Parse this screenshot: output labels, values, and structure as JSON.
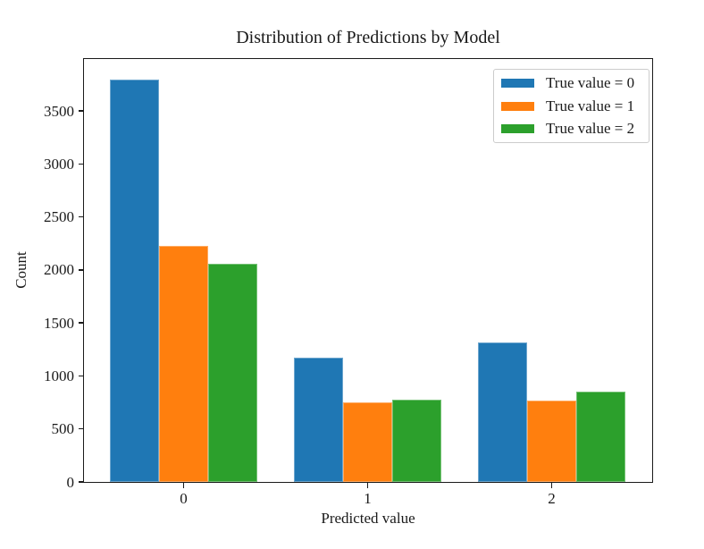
{
  "chart_data": {
    "type": "bar",
    "title": "Distribution of Predictions by Model",
    "xlabel": "Predicted value",
    "ylabel": "Count",
    "categories": [
      "0",
      "1",
      "2"
    ],
    "series": [
      {
        "name": "True value = 0",
        "color": "#1f77b4",
        "values": [
          3800,
          1170,
          1320
        ]
      },
      {
        "name": "True value = 1",
        "color": "#ff7f0e",
        "values": [
          2230,
          750,
          770
        ]
      },
      {
        "name": "True value = 2",
        "color": "#2ca02c",
        "values": [
          2060,
          780,
          855
        ]
      }
    ],
    "yticks": [
      0,
      500,
      1000,
      1500,
      2000,
      2500,
      3000,
      3500
    ],
    "ylim": [
      0,
      3990
    ],
    "grid": false,
    "legend_position": "upper right",
    "legend_title": ""
  }
}
